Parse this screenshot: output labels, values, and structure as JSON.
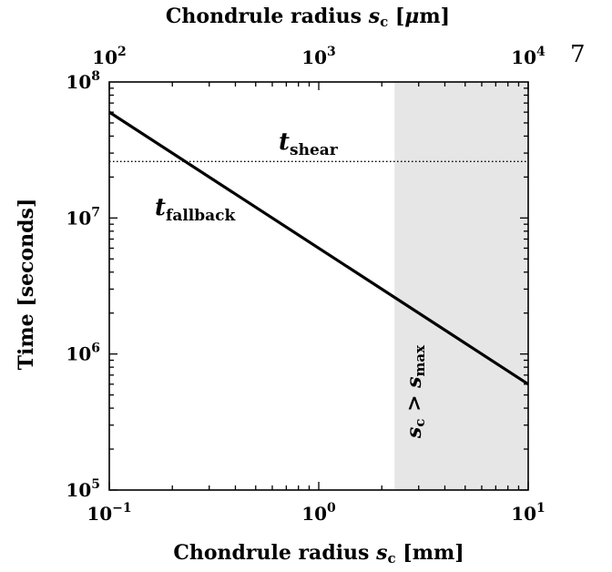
{
  "page_number": "7",
  "chart_data": {
    "type": "line",
    "xscale": "log",
    "yscale": "log",
    "xlim": [
      0.1,
      10
    ],
    "ylim": [
      100000,
      100000000
    ],
    "xlabel": {
      "base": "Chondrule radius ",
      "var": "s",
      "sub": "c",
      "unit": " [mm]"
    },
    "x2label": {
      "base": "Chondrule radius ",
      "var": "s",
      "sub": "c",
      "unit": " [",
      "unit_mu": "μ",
      "unit_end": "m]"
    },
    "ylabel": "Time [seconds]",
    "x_ticks": [
      {
        "value": 0.1,
        "base": "10",
        "exp": "−1"
      },
      {
        "value": 1,
        "base": "10",
        "exp": "0"
      },
      {
        "value": 10,
        "base": "10",
        "exp": "1"
      }
    ],
    "x2_ticks": [
      {
        "value": 0.1,
        "base": "10",
        "exp": "2"
      },
      {
        "value": 1,
        "base": "10",
        "exp": "3"
      },
      {
        "value": 10,
        "base": "10",
        "exp": "4"
      }
    ],
    "y_ticks": [
      {
        "value": 100000,
        "base": "10",
        "exp": "5"
      },
      {
        "value": 1000000,
        "base": "10",
        "exp": "6"
      },
      {
        "value": 10000000,
        "base": "10",
        "exp": "7"
      },
      {
        "value": 100000000,
        "base": "10",
        "exp": "8"
      }
    ],
    "series": [
      {
        "x": [
          0.1,
          10
        ],
        "y": [
          60000000,
          600000
        ],
        "style": "solid"
      },
      {
        "x": [
          0.1,
          10
        ],
        "y": [
          26000000,
          26000000
        ],
        "style": "dotted"
      }
    ],
    "series_labels": {
      "fallback": {
        "var": "t",
        "sub": "fallback"
      },
      "shear": {
        "var": "t",
        "sub": "shear"
      }
    },
    "shaded_region": {
      "x_start": 2.3,
      "x_end": 10,
      "color": "#e6e6e6",
      "label": {
        "var1": "s",
        "sub1": "c",
        "op": " > ",
        "var2": "s",
        "sub2": "max"
      }
    },
    "grid": false,
    "legend": "none"
  }
}
